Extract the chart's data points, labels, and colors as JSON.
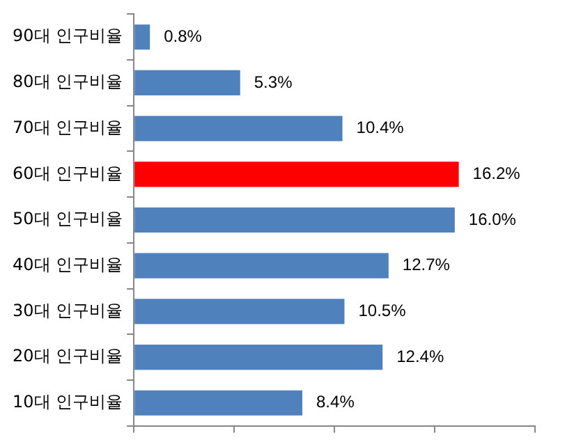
{
  "chart_data": {
    "type": "bar",
    "orientation": "horizontal",
    "categories": [
      "90대 인구비율",
      "80대 인구비율",
      "70대 인구비율",
      "60대 인구비율",
      "50대 인구비율",
      "40대 인구비율",
      "30대 인구비율",
      "20대 인구비율",
      "10대 인구비율"
    ],
    "values": [
      0.8,
      5.3,
      10.4,
      16.2,
      16.0,
      12.7,
      10.5,
      12.4,
      8.4
    ],
    "colors": [
      "#4f81bd",
      "#4f81bd",
      "#4f81bd",
      "#ff0000",
      "#4f81bd",
      "#4f81bd",
      "#4f81bd",
      "#4f81bd",
      "#4f81bd"
    ],
    "value_labels": [
      "0.8%",
      "5.3%",
      "10.4%",
      "16.2%",
      "16.0%",
      "12.7%",
      "10.5%",
      "12.4%",
      "8.4%"
    ],
    "xlim": [
      0,
      20
    ],
    "xticks": [
      {
        "value": 0,
        "label": null
      },
      {
        "value": 5,
        "label": null
      },
      {
        "value": 10,
        "label": null
      },
      {
        "value": 15,
        "label": null
      },
      {
        "value": 20,
        "label": null
      }
    ],
    "tick_labels": "y",
    "grid": false,
    "legend": false
  }
}
